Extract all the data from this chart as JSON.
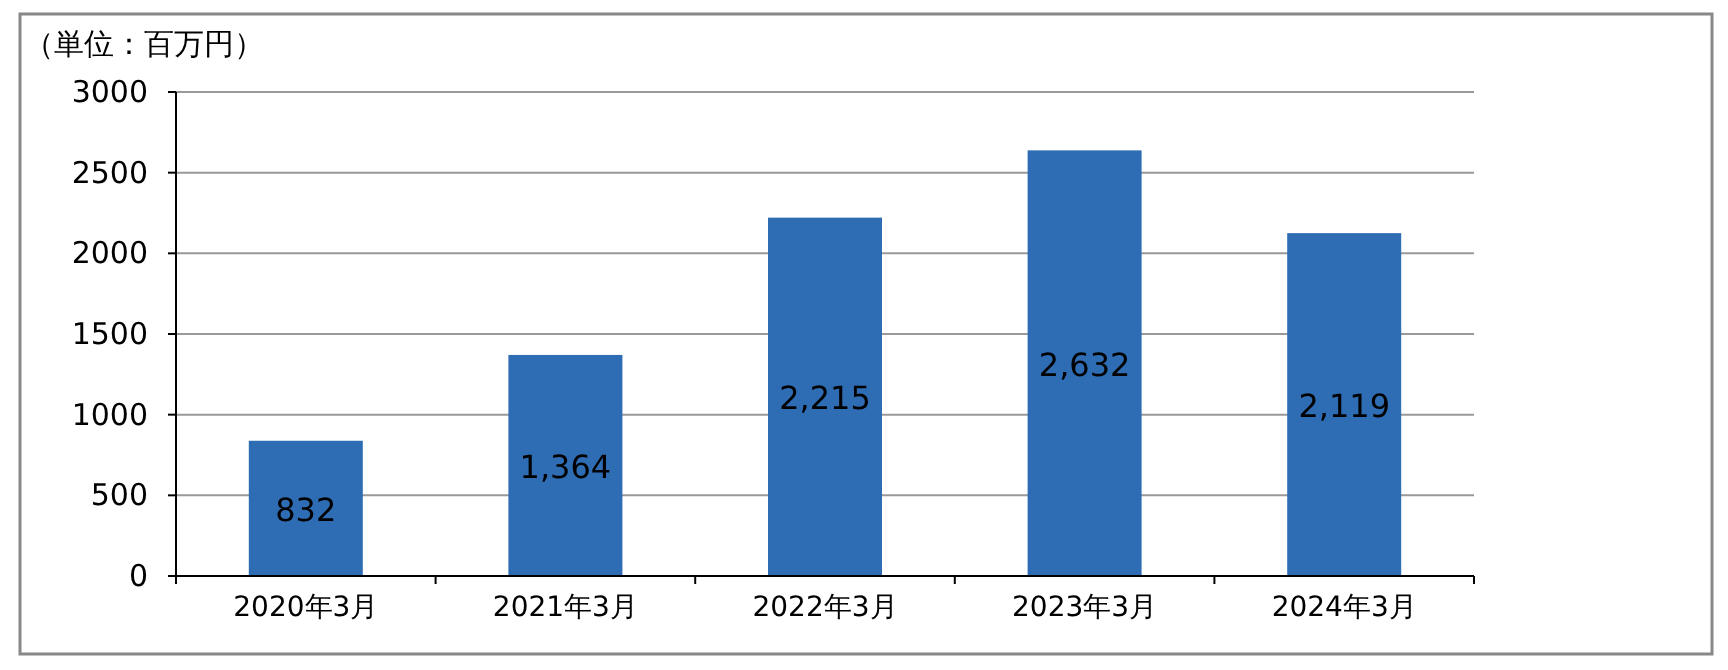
{
  "chart_data": {
    "type": "bar",
    "ylabel": "（単位：百万円）",
    "categories": [
      "2020年3月",
      "2021年3月",
      "2022年3月",
      "2023年3月",
      "2024年3月"
    ],
    "values": [
      832,
      1364,
      2215,
      2632,
      2119
    ],
    "value_labels": [
      "832",
      "1,364",
      "2,215",
      "2,632",
      "2,119"
    ],
    "color": "#2e6db4",
    "ylim": [
      0,
      3000
    ],
    "yticks": [
      0,
      500,
      1000,
      1500,
      2000,
      2500,
      3000
    ],
    "grid": "y"
  }
}
